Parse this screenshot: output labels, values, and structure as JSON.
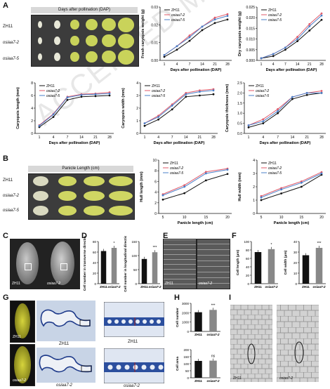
{
  "panels": {
    "A": "A",
    "B": "B",
    "C": "C",
    "D": "D",
    "E": "E",
    "F": "F",
    "G": "G",
    "H": "H",
    "I": "I"
  },
  "genotypes": [
    "ZH11",
    "osiaa7-2",
    "osiaa7-5"
  ],
  "panelA": {
    "header": "Days after pollination (DAP)"
  },
  "panelB": {
    "header": "Panicle Length (cm)"
  },
  "panelC": {
    "labels": [
      "ZH11",
      "osiaa7-2"
    ]
  },
  "panelE": {
    "labels": [
      "ZH11",
      "osiaa7-2"
    ]
  },
  "panelG": {
    "left_labels": [
      "ZH11",
      "osiaa7-2"
    ],
    "mid_labels": [
      "ZH11",
      "osiaa7-2"
    ],
    "right_labels": [
      "ZH11",
      "osiaa7-2"
    ]
  },
  "panelI": {
    "labels": [
      "ZH11",
      "osiaa7-2"
    ]
  },
  "watermark": "ACCEPTED MANUSCRIPT",
  "colors": {
    "ZH11": "#111111",
    "osiaa7-2": "#e05a6a",
    "osiaa7-5": "#4a7fc8",
    "bar_wt": "#111111",
    "bar_mut": "#888888"
  },
  "chart_data": [
    {
      "id": "fresh",
      "type": "line",
      "ylabel": "Fresh caryopsis weight (g)",
      "xlabel": "Days after pollination (DAP)",
      "x": [
        1,
        4,
        7,
        14,
        21,
        28
      ],
      "ylim": [
        0,
        0.03
      ],
      "yticks": [
        "0.00",
        "0.01",
        "0.02",
        "0.03"
      ],
      "series": [
        {
          "name": "ZH11",
          "values": [
            0.002,
            0.006,
            0.011,
            0.017,
            0.021,
            0.023
          ]
        },
        {
          "name": "osiaa7-2",
          "values": [
            0.003,
            0.008,
            0.014,
            0.019,
            0.024,
            0.026
          ]
        },
        {
          "name": "osiaa7-5",
          "values": [
            0.003,
            0.008,
            0.013,
            0.019,
            0.023,
            0.025
          ]
        }
      ]
    },
    {
      "id": "dry",
      "type": "line",
      "ylabel": "Dry caryopsis weight (g)",
      "xlabel": "Days after pollination (DAP)",
      "x": [
        1,
        4,
        7,
        14,
        21,
        28
      ],
      "ylim": [
        0,
        0.025
      ],
      "yticks": [
        "0.000",
        "0.005",
        "0.010",
        "0.015",
        "0.020",
        "0.025"
      ],
      "series": [
        {
          "name": "ZH11",
          "values": [
            0.001,
            0.002,
            0.005,
            0.009,
            0.014,
            0.019
          ]
        },
        {
          "name": "osiaa7-2",
          "values": [
            0.001,
            0.003,
            0.006,
            0.011,
            0.017,
            0.022
          ]
        },
        {
          "name": "osiaa7-5",
          "values": [
            0.001,
            0.003,
            0.006,
            0.01,
            0.016,
            0.021
          ]
        }
      ]
    },
    {
      "id": "clen",
      "type": "line",
      "ylabel": "Caryopsis length (mm)",
      "xlabel": "Days after pollination (DAP)",
      "x": [
        1,
        4,
        7,
        14,
        21,
        28
      ],
      "ylim": [
        0,
        8
      ],
      "yticks": [
        "0",
        "2",
        "4",
        "6",
        "8"
      ],
      "series": [
        {
          "name": "ZH11",
          "values": [
            1.0,
            2.6,
            5.3,
            5.8,
            5.9,
            6.0
          ]
        },
        {
          "name": "osiaa7-2",
          "values": [
            1.3,
            3.1,
            5.8,
            6.2,
            6.3,
            6.5
          ]
        },
        {
          "name": "osiaa7-5",
          "values": [
            1.2,
            3.0,
            5.7,
            6.1,
            6.2,
            6.3
          ]
        }
      ]
    },
    {
      "id": "cwid",
      "type": "line",
      "ylabel": "Caryopsis width (mm)",
      "xlabel": "Days after pollination (DAP)",
      "x": [
        1,
        4,
        7,
        14,
        21,
        28
      ],
      "ylim": [
        0,
        4
      ],
      "yticks": [
        "0",
        "1",
        "2",
        "3",
        "4"
      ],
      "series": [
        {
          "name": "ZH11",
          "values": [
            0.6,
            1.1,
            1.9,
            2.9,
            3.0,
            3.1
          ]
        },
        {
          "name": "osiaa7-2",
          "values": [
            0.8,
            1.4,
            2.3,
            3.2,
            3.4,
            3.5
          ]
        },
        {
          "name": "osiaa7-5",
          "values": [
            0.8,
            1.3,
            2.2,
            3.1,
            3.3,
            3.4
          ]
        }
      ]
    },
    {
      "id": "cthk",
      "type": "line",
      "ylabel": "Caryopsis thickness (mm)",
      "xlabel": "Days after pollination (DAP)",
      "x": [
        1,
        4,
        7,
        14,
        21,
        28
      ],
      "ylim": [
        0,
        2.5
      ],
      "yticks": [
        "0.0",
        "0.5",
        "1.0",
        "1.5",
        "2.0",
        "2.5"
      ],
      "series": [
        {
          "name": "ZH11",
          "values": [
            0.3,
            0.5,
            1.0,
            1.7,
            1.9,
            2.0
          ]
        },
        {
          "name": "osiaa7-2",
          "values": [
            0.4,
            0.7,
            1.2,
            1.8,
            2.0,
            2.1
          ]
        },
        {
          "name": "osiaa7-5",
          "values": [
            0.4,
            0.6,
            1.1,
            1.8,
            2.0,
            2.0
          ]
        }
      ]
    },
    {
      "id": "hlen",
      "type": "line",
      "ylabel": "Hull length (mm)",
      "xlabel": "Panicle length (cm)",
      "x": [
        5,
        10,
        15,
        20
      ],
      "ylim": [
        0,
        10
      ],
      "yticks": [
        "0",
        "2",
        "4",
        "6",
        "8",
        "10"
      ],
      "series": [
        {
          "name": "ZH11",
          "values": [
            2.6,
            3.8,
            6.2,
            7.4
          ]
        },
        {
          "name": "osiaa7-2",
          "values": [
            3.6,
            5.3,
            7.8,
            8.4
          ]
        },
        {
          "name": "osiaa7-5",
          "values": [
            3.4,
            5.0,
            7.5,
            8.2
          ]
        }
      ]
    },
    {
      "id": "hwid",
      "type": "line",
      "ylabel": "Hull width (mm)",
      "xlabel": "Panicle length (cm)",
      "x": [
        5,
        10,
        15,
        20
      ],
      "ylim": [
        0,
        4
      ],
      "yticks": [
        "0",
        "1",
        "2",
        "3",
        "4"
      ],
      "series": [
        {
          "name": "ZH11",
          "values": [
            1.0,
            1.5,
            2.0,
            2.9
          ]
        },
        {
          "name": "osiaa7-2",
          "values": [
            1.3,
            1.9,
            2.4,
            3.1
          ]
        },
        {
          "name": "osiaa7-5",
          "values": [
            1.2,
            1.8,
            2.3,
            3.0
          ]
        }
      ]
    },
    {
      "id": "d1",
      "type": "bar",
      "ylabel": "Cell number in transverse direction",
      "categories": [
        "ZH11",
        "osiaa7-2"
      ],
      "values": [
        62,
        68
      ],
      "ylim": [
        0,
        80
      ],
      "yticks": [
        "0",
        "20",
        "40",
        "60",
        "80"
      ],
      "sig": "*"
    },
    {
      "id": "d2",
      "type": "bar",
      "ylabel": "Cell number in longitudinal direction",
      "categories": [
        "ZH11",
        "osiaa7-2"
      ],
      "values": [
        88,
        112
      ],
      "ylim": [
        0,
        150
      ],
      "yticks": [
        "0",
        "50",
        "100",
        "150"
      ],
      "sig": "***"
    },
    {
      "id": "f1",
      "type": "bar",
      "ylabel": "Cell length (μm)",
      "categories": [
        "ZH11",
        "osiaa7-2"
      ],
      "values": [
        75,
        82
      ],
      "ylim": [
        0,
        100
      ],
      "yticks": [
        "0",
        "20",
        "40",
        "60",
        "80",
        "100"
      ],
      "sig": "*"
    },
    {
      "id": "f2",
      "type": "bar",
      "ylabel": "Cell width (μm)",
      "categories": [
        "ZH11",
        "osiaa7-2"
      ],
      "values": [
        27,
        34
      ],
      "ylim": [
        0,
        40
      ],
      "yticks": [
        "0",
        "10",
        "20",
        "30",
        "40"
      ],
      "sig": "***"
    },
    {
      "id": "h1",
      "type": "bar",
      "ylabel": "Cell number",
      "categories": [
        "ZH11",
        "osiaa7-2"
      ],
      "values": [
        2050,
        2300
      ],
      "ylim": [
        0,
        3000
      ],
      "yticks": [
        "0",
        "1000",
        "2000",
        "3000"
      ],
      "sig": "***"
    },
    {
      "id": "h2",
      "type": "bar",
      "ylabel": "Cell area",
      "categories": [
        "ZH11",
        "osiaa7-2"
      ],
      "values": [
        120,
        122
      ],
      "ylim": [
        0,
        200
      ],
      "yticks": [
        "0",
        "50",
        "100",
        "150",
        "200"
      ],
      "sig": "ns"
    }
  ]
}
